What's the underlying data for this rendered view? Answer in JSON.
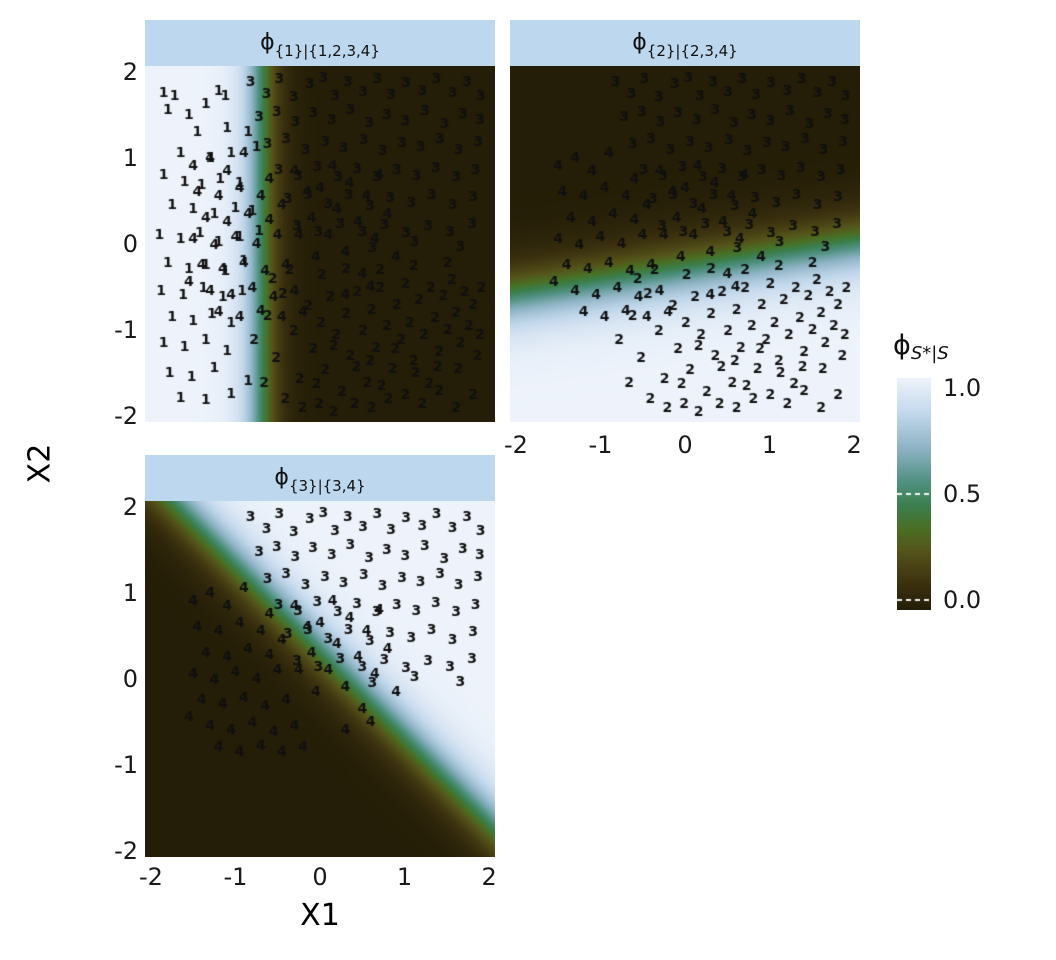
{
  "figure": {
    "xlabel": "X1",
    "ylabel": "X2",
    "strip_color": "#bdd7ee",
    "background_color": "#ffffff"
  },
  "chart_data": {
    "type": "heatmap",
    "subtype": "faceted probability surface with labeled scatter points",
    "xlabel": "X1",
    "ylabel": "X2",
    "x_range": [
      -2,
      2
    ],
    "y_range": [
      -2,
      2
    ],
    "x_ticks": [
      "-2",
      "-1",
      "0",
      "1",
      "2"
    ],
    "x_tick_values": [
      -2,
      -1,
      0,
      1,
      2
    ],
    "y_ticks": [
      "2",
      "1",
      "0",
      "-1",
      "-2"
    ],
    "y_tick_values": [
      2,
      1,
      0,
      -1,
      -2
    ],
    "colorbar": {
      "title_phi": "ϕ",
      "title_sub": "S*|S",
      "ticks": [
        {
          "label": "1.0",
          "value": 1.0
        },
        {
          "label": "0.5",
          "value": 0.5
        },
        {
          "label": "0.0",
          "value": 0.0
        }
      ],
      "stops": [
        [
          0.0,
          "#241d07"
        ],
        [
          0.12,
          "#3d3310"
        ],
        [
          0.25,
          "#55531a"
        ],
        [
          0.35,
          "#4a6f24"
        ],
        [
          0.45,
          "#3b7f4e"
        ],
        [
          0.55,
          "#4f9080"
        ],
        [
          0.7,
          "#8fb4c6"
        ],
        [
          0.85,
          "#c3d8ec"
        ],
        [
          1.0,
          "#eef3fb"
        ]
      ]
    },
    "panels": [
      {
        "title_phi": "ϕ",
        "title_sub": "{1}|{1,2,3,4}",
        "classes": [
          "1",
          "2",
          "3",
          "4"
        ],
        "prob": {
          "ax": -1,
          "ay": 0,
          "c": -0.7,
          "s": 8
        }
      },
      {
        "title_phi": "ϕ",
        "title_sub": "{2}|{2,3,4}",
        "classes": [
          "2",
          "3",
          "4"
        ],
        "prob": {
          "ax": 0.15,
          "ay": -1,
          "c": -0.3,
          "s": 5
        }
      },
      {
        "title_phi": "ϕ",
        "title_sub": "{3}|{3,4}",
        "classes": [
          "3",
          "4"
        ],
        "prob": {
          "ax": 1,
          "ay": 1,
          "c": -0.35,
          "s": 4.5
        }
      }
    ],
    "points": {
      "1": [
        [
          -1.85,
          1.75
        ],
        [
          -1.8,
          1.55
        ],
        [
          -1.72,
          1.72
        ],
        [
          -1.55,
          1.5
        ],
        [
          -1.35,
          1.62
        ],
        [
          -1.2,
          1.78
        ],
        [
          -1.12,
          1.72
        ],
        [
          -1.45,
          1.3
        ],
        [
          -1.1,
          1.35
        ],
        [
          -0.85,
          1.3
        ],
        [
          -1.65,
          1.05
        ],
        [
          -1.3,
          1.0
        ],
        [
          -1.05,
          1.05
        ],
        [
          -0.75,
          1.12
        ],
        [
          -1.85,
          0.8
        ],
        [
          -1.6,
          0.72
        ],
        [
          -1.4,
          0.68
        ],
        [
          -1.18,
          0.75
        ],
        [
          -0.95,
          0.7
        ],
        [
          -1.75,
          0.45
        ],
        [
          -1.5,
          0.4
        ],
        [
          -1.25,
          0.35
        ],
        [
          -1.0,
          0.42
        ],
        [
          -0.8,
          0.38
        ],
        [
          -1.9,
          0.1
        ],
        [
          -1.65,
          0.05
        ],
        [
          -1.42,
          0.12
        ],
        [
          -1.2,
          0.02
        ],
        [
          -0.95,
          0.08
        ],
        [
          -0.72,
          0.15
        ],
        [
          -1.8,
          -0.22
        ],
        [
          -1.55,
          -0.3
        ],
        [
          -1.35,
          -0.25
        ],
        [
          -1.12,
          -0.32
        ],
        [
          -0.9,
          -0.2
        ],
        [
          -1.88,
          -0.55
        ],
        [
          -1.62,
          -0.6
        ],
        [
          -1.38,
          -0.52
        ],
        [
          -1.15,
          -0.62
        ],
        [
          -0.92,
          -0.55
        ],
        [
          -1.75,
          -0.85
        ],
        [
          -1.5,
          -0.9
        ],
        [
          -1.28,
          -0.82
        ],
        [
          -1.05,
          -0.92
        ],
        [
          -1.85,
          -1.15
        ],
        [
          -1.6,
          -1.2
        ],
        [
          -1.35,
          -1.12
        ],
        [
          -1.1,
          -1.25
        ],
        [
          -1.78,
          -1.5
        ],
        [
          -1.52,
          -1.55
        ],
        [
          -1.25,
          -1.45
        ],
        [
          -1.65,
          -1.8
        ],
        [
          -1.35,
          -1.82
        ],
        [
          -1.05,
          -1.75
        ],
        [
          -0.85,
          -1.6
        ]
      ],
      "2": [
        [
          -0.78,
          -1.12
        ],
        [
          -0.62,
          -0.84
        ],
        [
          -0.52,
          -1.33
        ],
        [
          -0.44,
          -0.58
        ],
        [
          -0.31,
          -1.02
        ],
        [
          -0.24,
          -1.57
        ],
        [
          -0.14,
          -0.73
        ],
        [
          -0.08,
          -1.22
        ],
        [
          0.01,
          -0.92
        ],
        [
          0.06,
          -1.47
        ],
        [
          0.12,
          -0.62
        ],
        [
          0.19,
          -1.06
        ],
        [
          0.26,
          -1.72
        ],
        [
          0.31,
          -0.82
        ],
        [
          0.36,
          -1.31
        ],
        [
          0.44,
          -0.56
        ],
        [
          0.51,
          -1.02
        ],
        [
          0.56,
          -1.62
        ],
        [
          0.61,
          -0.77
        ],
        [
          0.66,
          -1.21
        ],
        [
          0.71,
          -0.52
        ],
        [
          0.79,
          -0.96
        ],
        [
          0.86,
          -1.46
        ],
        [
          0.91,
          -0.71
        ],
        [
          0.96,
          -1.12
        ],
        [
          1.01,
          -0.47
        ],
        [
          1.06,
          -0.92
        ],
        [
          1.11,
          -1.36
        ],
        [
          1.17,
          -0.66
        ],
        [
          1.23,
          -1.06
        ],
        [
          1.31,
          -0.52
        ],
        [
          1.36,
          -0.86
        ],
        [
          1.41,
          -1.26
        ],
        [
          1.46,
          -0.61
        ],
        [
          1.51,
          -1.01
        ],
        [
          1.56,
          -0.42
        ],
        [
          1.61,
          -0.81
        ],
        [
          1.66,
          -1.16
        ],
        [
          1.71,
          -0.56
        ],
        [
          1.76,
          -0.96
        ],
        [
          1.81,
          -0.71
        ],
        [
          1.86,
          -1.31
        ],
        [
          1.91,
          -0.52
        ],
        [
          -0.66,
          -1.62
        ],
        [
          -0.41,
          -1.81
        ],
        [
          -0.21,
          -1.91
        ],
        [
          -0.01,
          -1.86
        ],
        [
          0.16,
          -1.96
        ],
        [
          0.41,
          -1.86
        ],
        [
          0.61,
          -1.91
        ],
        [
          0.81,
          -1.81
        ],
        [
          1.01,
          -1.76
        ],
        [
          1.21,
          -1.86
        ],
        [
          1.41,
          -1.71
        ],
        [
          1.61,
          -1.91
        ],
        [
          1.81,
          -1.76
        ],
        [
          -0.56,
          -0.41
        ],
        [
          -0.36,
          -0.31
        ],
        [
          0.02,
          -0.36
        ],
        [
          0.31,
          -0.29
        ],
        [
          0.71,
          -0.31
        ],
        [
          1.11,
          -0.26
        ],
        [
          1.51,
          -0.23
        ],
        [
          0.16,
          -1.19
        ],
        [
          0.43,
          -1.43
        ],
        [
          0.89,
          -1.23
        ],
        [
          1.13,
          -1.51
        ],
        [
          1.39,
          -1.43
        ],
        [
          0.59,
          -1.36
        ],
        [
          -0.04,
          -1.63
        ],
        [
          0.73,
          -1.66
        ],
        [
          1.29,
          -1.63
        ],
        [
          1.63,
          -1.46
        ],
        [
          1.89,
          -1.06
        ]
      ],
      "3": [
        [
          -0.82,
          1.88
        ],
        [
          -0.63,
          1.74
        ],
        [
          -0.48,
          1.92
        ],
        [
          -0.31,
          1.7
        ],
        [
          -0.12,
          1.86
        ],
        [
          0.04,
          1.93
        ],
        [
          0.18,
          1.72
        ],
        [
          0.33,
          1.88
        ],
        [
          0.51,
          1.76
        ],
        [
          0.68,
          1.91
        ],
        [
          0.84,
          1.73
        ],
        [
          1.02,
          1.87
        ],
        [
          1.21,
          1.78
        ],
        [
          1.38,
          1.92
        ],
        [
          1.57,
          1.75
        ],
        [
          1.74,
          1.88
        ],
        [
          1.9,
          1.72
        ],
        [
          -0.72,
          1.47
        ],
        [
          -0.51,
          1.53
        ],
        [
          -0.29,
          1.41
        ],
        [
          -0.08,
          1.52
        ],
        [
          0.14,
          1.44
        ],
        [
          0.36,
          1.55
        ],
        [
          0.58,
          1.4
        ],
        [
          0.79,
          1.5
        ],
        [
          1.01,
          1.43
        ],
        [
          1.24,
          1.54
        ],
        [
          1.47,
          1.39
        ],
        [
          1.69,
          1.51
        ],
        [
          1.89,
          1.44
        ],
        [
          -0.62,
          1.16
        ],
        [
          -0.4,
          1.22
        ],
        [
          -0.17,
          1.09
        ],
        [
          0.06,
          1.18
        ],
        [
          0.28,
          1.11
        ],
        [
          0.52,
          1.21
        ],
        [
          0.74,
          1.08
        ],
        [
          0.97,
          1.17
        ],
        [
          1.19,
          1.12
        ],
        [
          1.42,
          1.22
        ],
        [
          1.64,
          1.09
        ],
        [
          1.87,
          1.18
        ],
        [
          -0.49,
          0.86
        ],
        [
          -0.26,
          0.79
        ],
        [
          -0.03,
          0.89
        ],
        [
          0.21,
          0.78
        ],
        [
          0.44,
          0.87
        ],
        [
          0.67,
          0.77
        ],
        [
          0.91,
          0.86
        ],
        [
          1.14,
          0.79
        ],
        [
          1.37,
          0.88
        ],
        [
          1.61,
          0.77
        ],
        [
          1.84,
          0.86
        ],
        [
          -0.38,
          0.52
        ],
        [
          -0.14,
          0.57
        ],
        [
          0.1,
          0.46
        ],
        [
          0.34,
          0.56
        ],
        [
          0.59,
          0.44
        ],
        [
          0.83,
          0.53
        ],
        [
          1.08,
          0.47
        ],
        [
          1.32,
          0.56
        ],
        [
          1.57,
          0.45
        ],
        [
          1.81,
          0.54
        ],
        [
          -0.27,
          0.21
        ],
        [
          -0.02,
          0.14
        ],
        [
          0.24,
          0.23
        ],
        [
          0.5,
          0.13
        ],
        [
          0.76,
          0.22
        ],
        [
          1.02,
          0.12
        ],
        [
          1.28,
          0.21
        ],
        [
          1.54,
          0.14
        ],
        [
          1.8,
          0.23
        ],
        [
          0.62,
          -0.05
        ],
        [
          1.12,
          0.02
        ],
        [
          1.66,
          -0.04
        ]
      ],
      "4": [
        [
          -1.5,
          0.9
        ],
        [
          -1.3,
          1.0
        ],
        [
          -1.1,
          0.85
        ],
        [
          -0.9,
          1.05
        ],
        [
          -1.45,
          0.6
        ],
        [
          -1.2,
          0.55
        ],
        [
          -0.95,
          0.65
        ],
        [
          -0.7,
          0.55
        ],
        [
          -1.35,
          0.3
        ],
        [
          -1.1,
          0.25
        ],
        [
          -0.85,
          0.35
        ],
        [
          -0.6,
          0.28
        ],
        [
          -1.5,
          0.05
        ],
        [
          -1.25,
          -0.02
        ],
        [
          -1.0,
          0.08
        ],
        [
          -0.75,
          0.0
        ],
        [
          -0.5,
          0.1
        ],
        [
          -1.4,
          -0.25
        ],
        [
          -1.15,
          -0.3
        ],
        [
          -0.9,
          -0.22
        ],
        [
          -0.65,
          -0.32
        ],
        [
          -0.4,
          -0.25
        ],
        [
          -1.3,
          -0.55
        ],
        [
          -1.05,
          -0.6
        ],
        [
          -0.8,
          -0.52
        ],
        [
          -0.55,
          -0.62
        ],
        [
          -0.3,
          -0.55
        ],
        [
          -1.2,
          -0.8
        ],
        [
          -0.95,
          -0.85
        ],
        [
          -0.7,
          -0.78
        ],
        [
          -0.45,
          -0.85
        ],
        [
          -0.2,
          -0.8
        ],
        [
          -0.15,
          0.6
        ],
        [
          -0.3,
          0.85
        ],
        [
          -0.1,
          0.3
        ],
        [
          0.0,
          0.65
        ],
        [
          0.1,
          0.1
        ],
        [
          0.15,
          0.9
        ],
        [
          0.2,
          0.4
        ],
        [
          0.3,
          -0.1
        ],
        [
          0.35,
          0.7
        ],
        [
          0.45,
          0.25
        ],
        [
          0.5,
          -0.35
        ],
        [
          0.55,
          0.55
        ],
        [
          0.65,
          0.05
        ],
        [
          0.7,
          0.8
        ],
        [
          0.8,
          0.35
        ],
        [
          0.9,
          -0.15
        ],
        [
          0.3,
          -0.6
        ],
        [
          0.6,
          -0.5
        ],
        [
          -0.05,
          -0.15
        ],
        [
          -0.25,
          0.1
        ],
        [
          -0.45,
          0.45
        ],
        [
          -0.6,
          0.75
        ],
        [
          -1.55,
          -0.45
        ]
      ]
    }
  }
}
